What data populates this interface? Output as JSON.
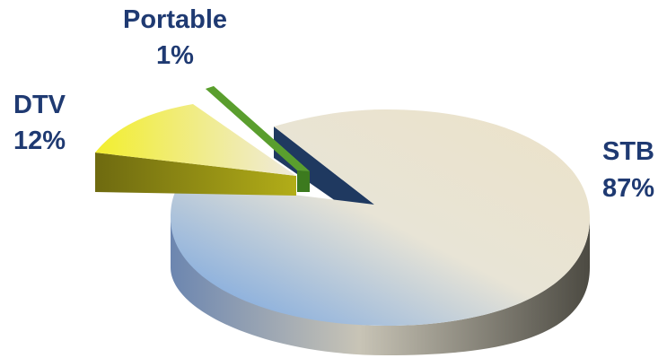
{
  "chart_data": {
    "type": "pie",
    "style": "3d-exploded",
    "title": "",
    "slices": [
      {
        "name": "STB",
        "value": 87,
        "label_value": "87%",
        "color": "#e7e1cc",
        "accent": "#6d9fe0"
      },
      {
        "name": "DTV",
        "value": 12,
        "label_value": "12%",
        "color": "#f6f27a",
        "accent": "#e9e6d6"
      },
      {
        "name": "Portable",
        "value": 1,
        "label_value": "1%",
        "color": "#86d84c",
        "accent": "#5a9e2e"
      }
    ]
  }
}
